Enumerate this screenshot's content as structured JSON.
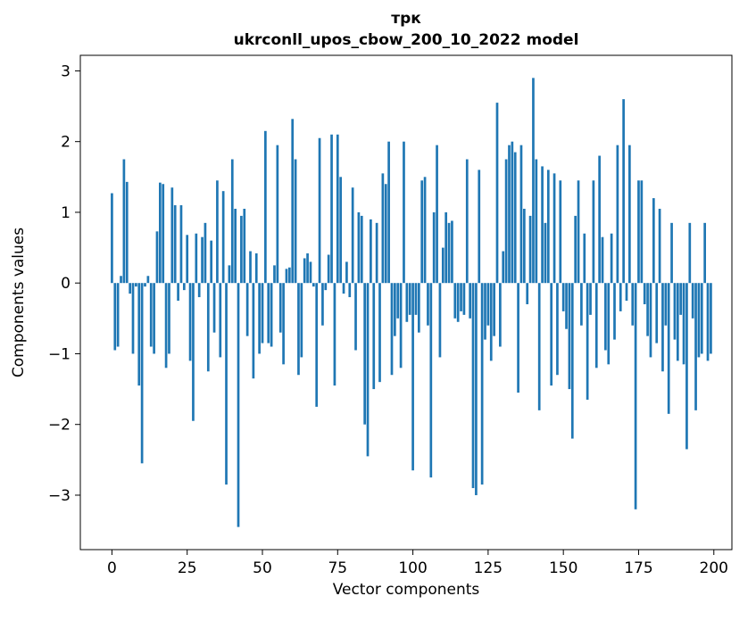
{
  "chart_data": {
    "type": "bar",
    "title_line1": "трк",
    "title_line2": "ukrconll_upos_cbow_200_10_2022 model",
    "title": "трк\nukrconll_upos_cbow_200_10_2022 model",
    "xlabel": "Vector components",
    "ylabel": "Components values",
    "x_start": 0,
    "bar_color": "#1f77b4",
    "bar_width": 0.8,
    "grid": false,
    "xticks": [
      0,
      25,
      50,
      75,
      100,
      125,
      150,
      175,
      200
    ],
    "yticks": [
      -3,
      -2,
      -1,
      0,
      1,
      2,
      3
    ],
    "xlim": [
      -10.5,
      206
    ],
    "ylim": [
      -3.77,
      3.22
    ],
    "values": [
      1.27,
      -0.95,
      -0.9,
      0.1,
      1.75,
      1.43,
      -0.15,
      -1.0,
      -0.05,
      -1.45,
      -2.55,
      -0.05,
      0.1,
      -0.9,
      -1.0,
      0.73,
      1.42,
      1.4,
      -1.2,
      -1.0,
      1.35,
      1.1,
      -0.25,
      1.1,
      -0.1,
      0.68,
      -1.1,
      -1.95,
      0.7,
      -0.2,
      0.65,
      0.85,
      -1.25,
      0.6,
      -0.7,
      1.45,
      -1.05,
      1.3,
      -2.85,
      0.25,
      1.75,
      1.05,
      -3.45,
      0.95,
      1.05,
      -0.75,
      0.45,
      -1.35,
      0.42,
      -1.0,
      -0.85,
      2.15,
      -0.85,
      -0.9,
      0.25,
      1.95,
      -0.7,
      -1.15,
      0.2,
      0.22,
      2.32,
      1.75,
      -1.3,
      -1.05,
      0.35,
      0.42,
      0.3,
      -0.05,
      -1.75,
      2.05,
      -0.6,
      -0.1,
      0.4,
      2.1,
      -1.45,
      2.1,
      1.5,
      -0.15,
      0.3,
      -0.2,
      1.35,
      -0.95,
      1.0,
      0.95,
      -2.0,
      -2.45,
      0.9,
      -1.5,
      0.85,
      -1.4,
      1.55,
      1.4,
      2.0,
      -1.3,
      -0.75,
      -0.5,
      -1.2,
      2.0,
      -0.55,
      -0.45,
      -2.65,
      -0.45,
      -0.7,
      1.45,
      1.5,
      -0.6,
      -2.75,
      1.0,
      1.95,
      -1.05,
      0.5,
      1.0,
      0.85,
      0.88,
      -0.5,
      -0.55,
      -0.4,
      -0.45,
      1.75,
      -0.5,
      -2.9,
      -3.0,
      1.6,
      -2.85,
      -0.8,
      -0.6,
      -1.1,
      -0.75,
      2.55,
      -0.9,
      0.45,
      1.75,
      1.95,
      2.0,
      1.85,
      -1.55,
      1.95,
      1.05,
      -0.3,
      0.95,
      2.9,
      1.75,
      -1.8,
      1.65,
      0.85,
      1.6,
      -1.45,
      1.55,
      -1.3,
      1.45,
      -0.4,
      -0.65,
      -1.5,
      -2.2,
      0.95,
      1.45,
      -0.6,
      0.7,
      -1.65,
      -0.45,
      1.45,
      -1.2,
      1.8,
      0.65,
      -0.95,
      -1.15,
      0.7,
      -0.8,
      1.95,
      -0.4,
      2.6,
      -0.25,
      1.95,
      -0.6,
      -3.2,
      1.45,
      1.45,
      -0.3,
      -0.75,
      -1.05,
      1.2,
      -0.85,
      1.05,
      -1.25,
      -0.6,
      -1.85,
      0.85,
      -0.8,
      -1.1,
      -0.45,
      -1.15,
      -2.35,
      0.85,
      -0.5,
      -1.8,
      -1.05,
      -1.0,
      0.85,
      -1.1,
      -1.0
    ]
  }
}
